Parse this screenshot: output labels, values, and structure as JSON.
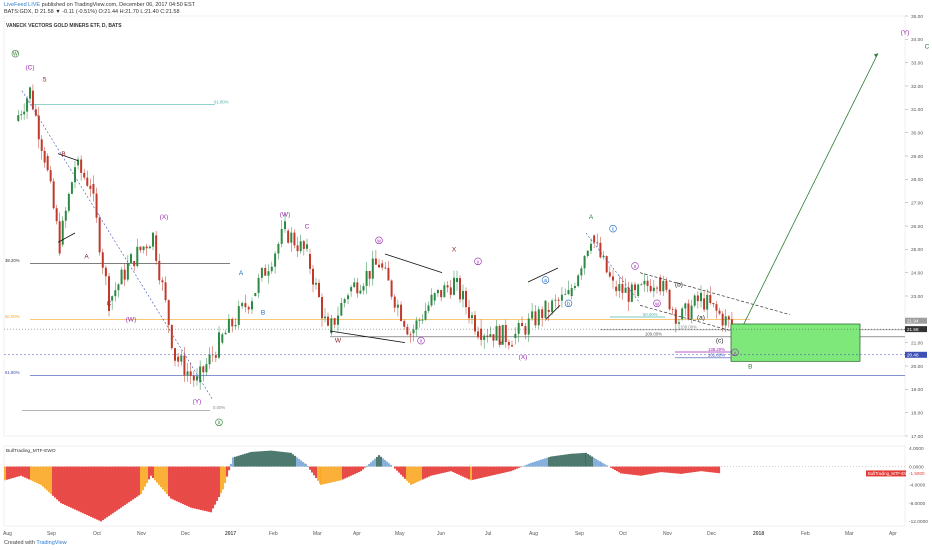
{
  "header": {
    "author": "LiveFeed LIVE",
    "published": " published on TradingView.com, December 06, 2017 04:50 EST",
    "quote": "BATS:GDX, D  21.58 ▼ -0.11 (-0.51%)  O:21.44 H:21.70 L:21.40 C:21.58"
  },
  "symbol_title": "VANECK VECTORS GOLD MINERS ETF, D, BATS",
  "footer": {
    "created_with": "Created with",
    "brand": "TradingView"
  },
  "colors": {
    "up": "#2d8a45",
    "down": "#c0392b",
    "wave_purple": "#9c27b0",
    "wave_green": "#2e7d32",
    "wave_maroon": "#8b1a1a",
    "wave_blue": "#1565c0",
    "fib_teal": "#4db6ac",
    "fib_orange": "#f5a623",
    "fib_blue": "#3f51b5",
    "target_box": "#7ee87a",
    "osc_teal": "#3d6b5f",
    "osc_blue": "#7ba7d8",
    "osc_red": "#e53935",
    "osc_orange": "#f9a825"
  },
  "chart_data": [
    {
      "type": "candlestick",
      "title": "VANECK VECTORS GOLD MINERS ETF, D, BATS",
      "ylim": [
        17.0,
        35.0
      ],
      "y_ticks": [
        "17.00",
        "18.00",
        "19.00",
        "20.00",
        "21.00",
        "22.00",
        "23.00",
        "24.00",
        "25.00",
        "26.00",
        "27.00",
        "28.00",
        "29.00",
        "30.00",
        "31.00",
        "32.00",
        "33.00",
        "34.00",
        "35.00"
      ],
      "x_labels": [
        "Aug",
        "Sep",
        "Oct",
        "Nov",
        "Dec",
        "2017",
        "Feb",
        "Mar",
        "Apr",
        "May",
        "Jun",
        "Jul",
        "Aug",
        "Sep",
        "Oct",
        "Nov",
        "Dec",
        "2018",
        "Feb",
        "Mar",
        "Apr"
      ],
      "price_path": [
        {
          "x": "Aug 2016",
          "y": 30.5
        },
        {
          "x": "Aug 2016",
          "y": 31.8
        },
        {
          "x": "Aug 2016",
          "y": 29.0
        },
        {
          "x": "Sep 2016",
          "y": 25.2
        },
        {
          "x": "Sep 2016",
          "y": 28.6
        },
        {
          "x": "Sep 2016",
          "y": 27.8
        },
        {
          "x": "Oct 2016",
          "y": 22.8
        },
        {
          "x": "Oct 2016",
          "y": 24.5
        },
        {
          "x": "Nov 2016",
          "y": 25.6
        },
        {
          "x": "Nov 2016",
          "y": 20.4
        },
        {
          "x": "Dec 2016",
          "y": 19.3
        },
        {
          "x": "Dec 2016",
          "y": 21.0
        },
        {
          "x": "Jan 2017",
          "y": 23.0
        },
        {
          "x": "Feb 2017",
          "y": 25.8
        },
        {
          "x": "Feb 2017",
          "y": 24.8
        },
        {
          "x": "Mar 2017",
          "y": 21.4
        },
        {
          "x": "Mar 2017",
          "y": 23.2
        },
        {
          "x": "Apr 2017",
          "y": 24.4
        },
        {
          "x": "May 2017",
          "y": 21.4
        },
        {
          "x": "May 2017",
          "y": 22.8
        },
        {
          "x": "Jun 2017",
          "y": 23.6
        },
        {
          "x": "Jun 2017",
          "y": 21.6
        },
        {
          "x": "Jul 2017",
          "y": 21.2
        },
        {
          "x": "Aug 2017",
          "y": 22.4
        },
        {
          "x": "Aug 2017",
          "y": 23.0
        },
        {
          "x": "Sep 2017",
          "y": 25.6
        },
        {
          "x": "Sep 2017",
          "y": 23.4
        },
        {
          "x": "Oct 2017",
          "y": 23.0
        },
        {
          "x": "Oct 2017",
          "y": 23.8
        },
        {
          "x": "Nov 2017",
          "y": 22.0
        },
        {
          "x": "Nov 2017",
          "y": 22.9
        },
        {
          "x": "Dec 2017",
          "y": 21.58
        }
      ],
      "last_price": "21.58",
      "price_badges": [
        "21.94",
        "21.58",
        "20.48"
      ],
      "fib_levels": [
        {
          "label": "61.80%",
          "y": 31.2
        },
        {
          "label": "38.20%",
          "y": 24.4
        },
        {
          "label": "50.00%",
          "y": 22.0
        },
        {
          "label": "61.80%",
          "y": 19.6
        },
        {
          "label": "0.00%",
          "y": 18.1
        },
        {
          "label": "100.00%",
          "y": 21.25
        },
        {
          "label": "100.00%",
          "y": 21.55
        },
        {
          "label": "138.20%",
          "y": 20.6
        },
        {
          "label": "161.80%",
          "y": 20.35
        },
        {
          "label": "50.00%",
          "y": 22.1
        }
      ],
      "wave_labels": [
        {
          "text": "W",
          "circled": true,
          "color": "green",
          "x": "Aug 2016",
          "y": 33.3
        },
        {
          "text": "(C)",
          "circled": false,
          "color": "purple",
          "x": "Aug 2016",
          "y": 32.7
        },
        {
          "text": "5",
          "circled": false,
          "color": "maroon",
          "x": "Aug 2016",
          "y": 32.2
        },
        {
          "text": "B",
          "circled": false,
          "color": "maroon",
          "x": "Sep 2016",
          "y": 29.0
        },
        {
          "text": "A",
          "circled": false,
          "color": "maroon",
          "x": "Sep 2016",
          "y": 24.6
        },
        {
          "text": "C",
          "circled": false,
          "color": "maroon",
          "x": "Oct 2016",
          "y": 22.6
        },
        {
          "text": "(W)",
          "circled": false,
          "color": "purple",
          "x": "Oct 2016",
          "y": 21.9
        },
        {
          "text": "(X)",
          "circled": false,
          "color": "purple",
          "x": "Nov 2016",
          "y": 26.3
        },
        {
          "text": "(Y)",
          "circled": false,
          "color": "purple",
          "x": "Dec 2016",
          "y": 18.4
        },
        {
          "text": "X",
          "circled": true,
          "color": "green",
          "x": "Dec 2016",
          "y": 17.5
        },
        {
          "text": "A",
          "circled": false,
          "color": "blue",
          "x": "Jan 2017",
          "y": 23.9
        },
        {
          "text": "B",
          "circled": false,
          "color": "blue",
          "x": "Jan 2017",
          "y": 22.2
        },
        {
          "text": "(W)",
          "circled": false,
          "color": "purple",
          "x": "Feb 2017",
          "y": 26.4
        },
        {
          "text": "C",
          "circled": false,
          "color": "purple",
          "x": "Feb 2017",
          "y": 25.9
        },
        {
          "text": "W",
          "circled": false,
          "color": "maroon",
          "x": "Mar 2017",
          "y": 21.0
        },
        {
          "text": "w",
          "circled": true,
          "color": "purple",
          "x": "Apr 2017",
          "y": 25.3
        },
        {
          "text": "x",
          "circled": true,
          "color": "purple",
          "x": "May 2017",
          "y": 21.0
        },
        {
          "text": "X",
          "circled": false,
          "color": "maroon",
          "x": "Jun 2017",
          "y": 24.9
        },
        {
          "text": "y",
          "circled": true,
          "color": "purple",
          "x": "Jun 2017",
          "y": 24.4
        },
        {
          "text": "Y",
          "circled": false,
          "color": "maroon",
          "x": "Jul 2017",
          "y": 20.9
        },
        {
          "text": "(X)",
          "circled": false,
          "color": "purple",
          "x": "Jul 2017",
          "y": 20.3
        },
        {
          "text": "a",
          "circled": true,
          "color": "blue",
          "x": "Aug 2017",
          "y": 23.6
        },
        {
          "text": "b",
          "circled": true,
          "color": "blue",
          "x": "Aug 2017",
          "y": 22.6
        },
        {
          "text": "A",
          "circled": false,
          "color": "green",
          "x": "Sep 2017",
          "y": 26.3
        },
        {
          "text": "c",
          "circled": true,
          "color": "blue",
          "x": "Sep 2017",
          "y": 25.8
        },
        {
          "text": "x",
          "circled": true,
          "color": "purple",
          "x": "Oct 2017",
          "y": 24.2
        },
        {
          "text": "w",
          "circled": true,
          "color": "purple",
          "x": "Oct 2017",
          "y": 22.6
        },
        {
          "text": "(b)",
          "circled": false,
          "color": "dark",
          "x": "Nov 2017",
          "y": 23.4
        },
        {
          "text": "(a)",
          "circled": false,
          "color": "dark",
          "x": "Nov 2017",
          "y": 22.0
        },
        {
          "text": "(c)",
          "circled": false,
          "color": "dark",
          "x": "Dec 2017",
          "y": 21.0
        },
        {
          "text": "y",
          "circled": true,
          "color": "purple",
          "x": "Dec 2017",
          "y": 20.5
        },
        {
          "text": "B",
          "circled": false,
          "color": "green",
          "x": "Dec 2017",
          "y": 19.9
        },
        {
          "text": "(Y)",
          "circled": false,
          "color": "purple",
          "x": "Apr 2018",
          "y": 34.2
        },
        {
          "text": "C",
          "circled": false,
          "color": "green",
          "x": "Apr 2018",
          "y": 33.6
        }
      ],
      "target_zone": {
        "x_from": "Dec 2017",
        "x_to": "Feb 2018",
        "y_from": 20.2,
        "y_to": 21.8
      }
    },
    {
      "type": "area",
      "title": "BullTrading_MTF-EWO",
      "label": "BullTrading_MTF-EWO",
      "ylim": [
        -13.0,
        4.5
      ],
      "y_ticks": [
        "4.0000",
        "0.0000",
        "-4.0000",
        "-8.0000",
        "-12.0000"
      ],
      "last_value": "-1.5000"
    }
  ]
}
